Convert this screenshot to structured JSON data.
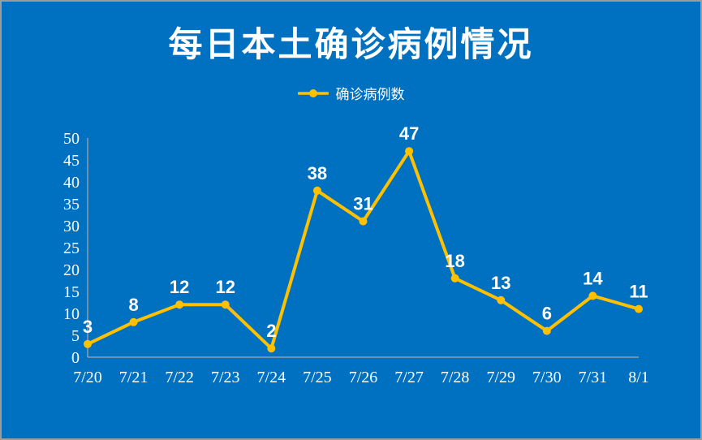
{
  "title": "每日本土确诊病例情况",
  "legend": {
    "label": "确诊病例数"
  },
  "colors": {
    "background": "#0070C0",
    "line": "#FFC000",
    "axis": "#A6A6A6",
    "text": "#FFFFFF",
    "frame_border": "#9C9C9C"
  },
  "chart_data": {
    "type": "line",
    "title": "每日本土确诊病例情况",
    "categories": [
      "7/20",
      "7/21",
      "7/22",
      "7/23",
      "7/24",
      "7/25",
      "7/26",
      "7/27",
      "7/28",
      "7/29",
      "7/30",
      "7/31",
      "8/1"
    ],
    "series": [
      {
        "name": "确诊病例数",
        "values": [
          3,
          8,
          12,
          12,
          2,
          38,
          31,
          47,
          18,
          13,
          6,
          14,
          11
        ]
      }
    ],
    "xlabel": "",
    "ylabel": "",
    "ylim": [
      0,
      50
    ],
    "ytick_step": 5,
    "grid": false,
    "legend_position": "top-center",
    "data_labels": true,
    "marker": "circle"
  }
}
